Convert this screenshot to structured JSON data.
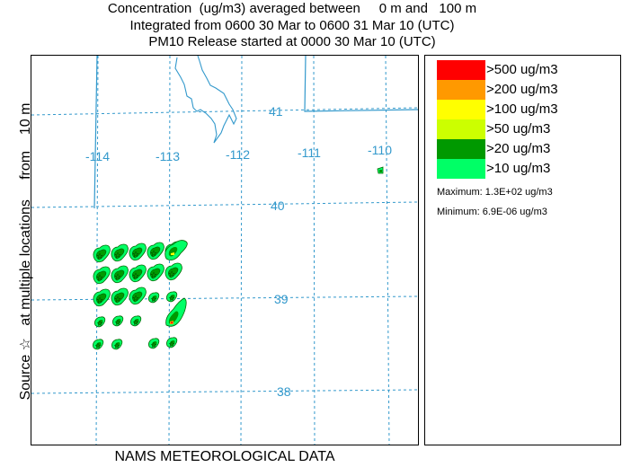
{
  "header": {
    "line1": "Concentration  (ug/m3) averaged between     0 m and   100 m",
    "line2": "Integrated from 0600 30 Mar to 0600 31 Mar 10 (UTC)",
    "line3": "PM10 Release started at 0000 30 Mar 10 (UTC)"
  },
  "side_label": "Source ☆   at multiple locations     from    10 m",
  "bottom_label": "NAMS METEOROLOGICAL DATA",
  "map": {
    "line_color": "#3399cc",
    "longitude_labels": [
      "-114",
      "-113",
      "-112",
      "-111",
      "-110"
    ],
    "latitude_labels": [
      "41",
      "40",
      "39",
      "38"
    ]
  },
  "legend": {
    "items": [
      {
        "label": ">500 ug/m3",
        "color": "#ff0000"
      },
      {
        "label": ">200 ug/m3",
        "color": "#ff9900"
      },
      {
        "label": ">100 ug/m3",
        "color": "#ffff00"
      },
      {
        "label": ">50 ug/m3",
        "color": "#ccff00"
      },
      {
        "label": ">20 ug/m3",
        "color": "#009900"
      },
      {
        "label": ">10 ug/m3",
        "color": "#00ff66"
      }
    ],
    "maximum": "Maximum: 1.3E+02 ug/m3",
    "minimum": "Minimum: 6.9E-06 ug/m3"
  }
}
